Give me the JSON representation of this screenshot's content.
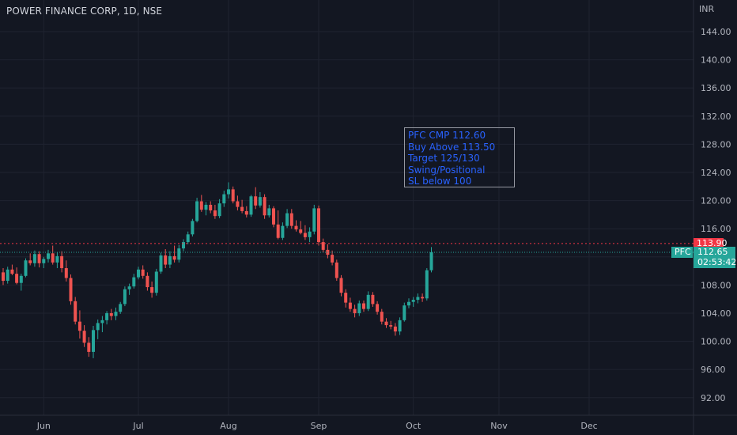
{
  "header": {
    "title": "POWER FINANCE CORP, 1D, NSE",
    "currency": "INR"
  },
  "note": {
    "text": "PFC CMP 112.60\nBuy Above 113.50\nTarget 125/130\nSwing/Positional\nSL below 100",
    "color": "#2962ff"
  },
  "level_line": {
    "price": 113.9,
    "label": "113.90",
    "color": "#f23645"
  },
  "last_price": {
    "symbol": "PFC",
    "price": 112.65,
    "label": "112.65",
    "countdown": "02:53:42",
    "color": "#26a69a"
  },
  "colors": {
    "up": "#26a69a",
    "down": "#ef5350",
    "grid": "#1f2330",
    "background": "#131722"
  },
  "chart_data": {
    "type": "candlestick",
    "title": "POWER FINANCE CORP, 1D, NSE",
    "ylim": [
      89.5,
      148.5
    ],
    "y_ticks": [
      "92.00",
      "96.00",
      "100.00",
      "104.00",
      "108.00",
      "112.00",
      "116.00",
      "120.00",
      "124.00",
      "128.00",
      "132.00",
      "136.00",
      "140.00",
      "144.00"
    ],
    "x_ticks": [
      "Jun",
      "Jul",
      "Aug",
      "Sep",
      "Oct",
      "Nov",
      "Dec"
    ],
    "x_tick_index": [
      9,
      30,
      50,
      70,
      91,
      110,
      130
    ],
    "candles": [
      [
        109.8,
        110.4,
        108.0,
        108.6
      ],
      [
        108.6,
        110.6,
        108.2,
        110.2
      ],
      [
        110.2,
        110.9,
        109.4,
        109.6
      ],
      [
        109.6,
        110.5,
        108.1,
        108.3
      ],
      [
        108.3,
        109.6,
        107.2,
        109.3
      ],
      [
        109.3,
        111.8,
        109.1,
        111.5
      ],
      [
        111.5,
        112.5,
        110.8,
        111.1
      ],
      [
        111.1,
        112.9,
        110.6,
        112.4
      ],
      [
        112.4,
        112.8,
        110.5,
        111.1
      ],
      [
        111.1,
        112.0,
        110.4,
        111.7
      ],
      [
        111.7,
        113.0,
        111.2,
        112.5
      ],
      [
        112.5,
        113.6,
        110.9,
        111.2
      ],
      [
        111.2,
        112.7,
        110.4,
        112.1
      ],
      [
        112.1,
        112.8,
        109.8,
        110.4
      ],
      [
        110.4,
        111.5,
        108.5,
        109.0
      ],
      [
        109.0,
        109.5,
        105.2,
        105.7
      ],
      [
        105.7,
        106.3,
        102.4,
        102.8
      ],
      [
        102.8,
        104.4,
        100.4,
        101.5
      ],
      [
        101.5,
        102.3,
        99.2,
        99.8
      ],
      [
        99.8,
        100.6,
        97.8,
        98.5
      ],
      [
        98.5,
        102.2,
        97.6,
        101.6
      ],
      [
        101.6,
        103.1,
        100.3,
        102.6
      ],
      [
        102.6,
        103.6,
        101.3,
        103.0
      ],
      [
        103.0,
        104.3,
        102.4,
        104.0
      ],
      [
        104.0,
        104.6,
        103.0,
        103.6
      ],
      [
        103.6,
        104.8,
        103.0,
        104.2
      ],
      [
        104.2,
        105.6,
        103.9,
        105.3
      ],
      [
        105.3,
        107.8,
        105.0,
        107.4
      ],
      [
        107.4,
        108.2,
        106.6,
        107.8
      ],
      [
        107.8,
        109.6,
        107.5,
        109.1
      ],
      [
        109.1,
        110.6,
        108.8,
        110.2
      ],
      [
        110.2,
        110.8,
        108.9,
        109.3
      ],
      [
        109.3,
        109.8,
        107.2,
        107.7
      ],
      [
        107.7,
        108.5,
        106.2,
        106.9
      ],
      [
        106.9,
        110.3,
        106.5,
        109.9
      ],
      [
        109.9,
        112.6,
        109.6,
        112.2
      ],
      [
        112.2,
        113.1,
        110.4,
        110.9
      ],
      [
        110.9,
        112.8,
        110.4,
        112.1
      ],
      [
        112.1,
        113.6,
        111.2,
        111.6
      ],
      [
        111.6,
        113.7,
        111.2,
        113.2
      ],
      [
        113.2,
        114.5,
        112.8,
        114.1
      ],
      [
        114.1,
        115.6,
        113.8,
        115.2
      ],
      [
        115.2,
        117.4,
        114.9,
        117.1
      ],
      [
        117.1,
        120.4,
        116.9,
        119.9
      ],
      [
        119.9,
        120.8,
        118.4,
        118.7
      ],
      [
        118.7,
        119.8,
        117.9,
        119.4
      ],
      [
        119.4,
        119.9,
        118.2,
        118.6
      ],
      [
        118.6,
        119.4,
        117.4,
        117.8
      ],
      [
        117.8,
        120.2,
        117.5,
        119.6
      ],
      [
        119.6,
        121.4,
        119.1,
        120.9
      ],
      [
        120.9,
        122.6,
        120.3,
        121.6
      ],
      [
        121.6,
        122.0,
        119.6,
        119.9
      ],
      [
        119.9,
        120.7,
        118.6,
        119.1
      ],
      [
        119.1,
        120.1,
        118.2,
        118.5
      ],
      [
        118.5,
        119.2,
        117.6,
        118.0
      ],
      [
        118.0,
        120.8,
        117.7,
        120.6
      ],
      [
        120.6,
        121.9,
        118.8,
        119.3
      ],
      [
        119.3,
        121.2,
        119.0,
        120.5
      ],
      [
        120.5,
        120.9,
        117.4,
        117.9
      ],
      [
        117.9,
        119.4,
        117.6,
        118.9
      ],
      [
        118.9,
        119.2,
        116.2,
        116.6
      ],
      [
        116.6,
        118.6,
        114.5,
        114.7
      ],
      [
        114.7,
        116.9,
        114.4,
        116.4
      ],
      [
        116.4,
        118.8,
        116.1,
        118.2
      ],
      [
        118.2,
        118.8,
        116.0,
        116.4
      ],
      [
        116.4,
        117.2,
        115.6,
        115.9
      ],
      [
        115.9,
        117.1,
        115.2,
        115.4
      ],
      [
        115.4,
        116.5,
        114.4,
        114.8
      ],
      [
        114.8,
        116.2,
        114.1,
        115.6
      ],
      [
        115.6,
        119.4,
        115.2,
        118.9
      ],
      [
        118.9,
        119.3,
        113.6,
        114.1
      ],
      [
        114.1,
        114.6,
        112.6,
        113.0
      ],
      [
        113.0,
        113.8,
        111.8,
        112.3
      ],
      [
        112.3,
        112.9,
        110.8,
        111.2
      ],
      [
        111.2,
        111.6,
        108.6,
        109.0
      ],
      [
        109.0,
        109.4,
        106.4,
        106.9
      ],
      [
        106.9,
        107.4,
        104.8,
        105.5
      ],
      [
        105.5,
        106.2,
        104.2,
        104.6
      ],
      [
        104.6,
        105.2,
        103.4,
        104.0
      ],
      [
        104.0,
        105.8,
        103.6,
        105.4
      ],
      [
        105.4,
        105.8,
        104.2,
        104.6
      ],
      [
        104.6,
        107.1,
        104.3,
        106.6
      ],
      [
        106.6,
        107.0,
        104.9,
        105.3
      ],
      [
        105.3,
        105.7,
        103.8,
        104.2
      ],
      [
        104.2,
        104.6,
        102.4,
        102.8
      ],
      [
        102.8,
        103.3,
        101.9,
        102.3
      ],
      [
        102.3,
        102.9,
        101.7,
        102.1
      ],
      [
        102.1,
        102.6,
        100.8,
        101.4
      ],
      [
        101.4,
        103.4,
        100.9,
        103.0
      ],
      [
        103.0,
        105.5,
        102.8,
        105.1
      ],
      [
        105.1,
        106.1,
        104.7,
        105.6
      ],
      [
        105.6,
        106.3,
        104.9,
        105.9
      ],
      [
        105.9,
        106.8,
        105.4,
        106.3
      ],
      [
        106.3,
        106.8,
        105.6,
        106.1
      ],
      [
        106.1,
        110.4,
        105.8,
        110.1
      ],
      [
        110.1,
        113.4,
        109.8,
        112.65
      ]
    ]
  }
}
